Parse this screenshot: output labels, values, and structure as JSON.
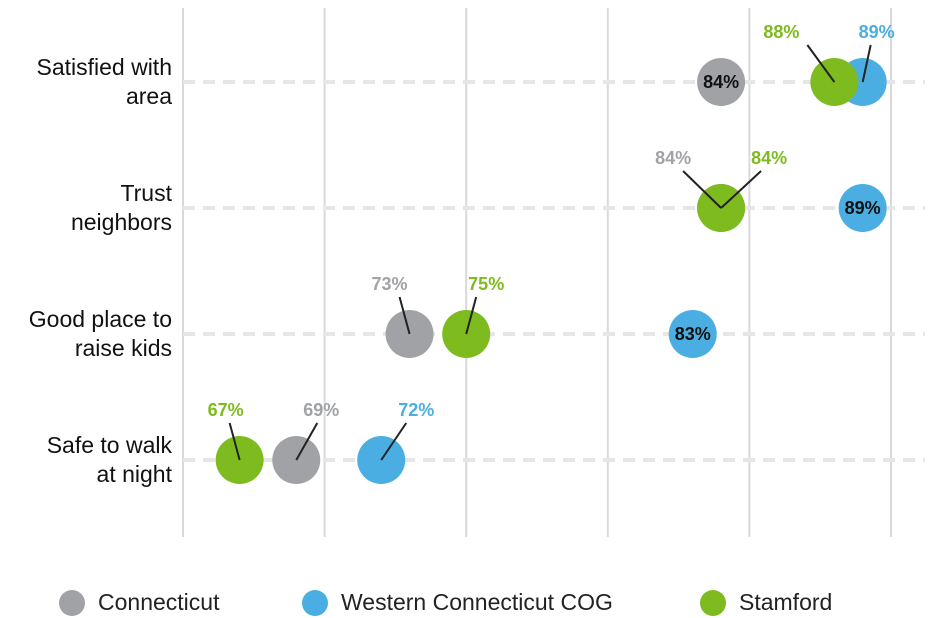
{
  "chart_data": {
    "type": "dot",
    "categories": [
      "Satisfied with\narea",
      "Trust\nneighbors",
      "Good place to\nraise kids",
      "Safe to walk\nat night"
    ],
    "series": [
      {
        "name": "Connecticut",
        "color": "#a0a2a6",
        "values": [
          84,
          84,
          73,
          69
        ],
        "value_labels": [
          "84%",
          "84%",
          "73%",
          "69%"
        ]
      },
      {
        "name": "Western Connecticut COG",
        "color": "#4aaee3",
        "values": [
          89,
          89,
          83,
          72
        ],
        "value_labels": [
          "89%",
          "89%",
          "83%",
          "72%"
        ]
      },
      {
        "name": "Stamford",
        "color": "#7dbb1f",
        "values": [
          88,
          84,
          75,
          67
        ],
        "value_labels": [
          "88%",
          "84%",
          "75%",
          "67%"
        ]
      }
    ],
    "xlim": [
      65,
      90
    ],
    "xticks": [
      65,
      70,
      75,
      80,
      85,
      90
    ],
    "grid": true,
    "legend": "bottom"
  }
}
